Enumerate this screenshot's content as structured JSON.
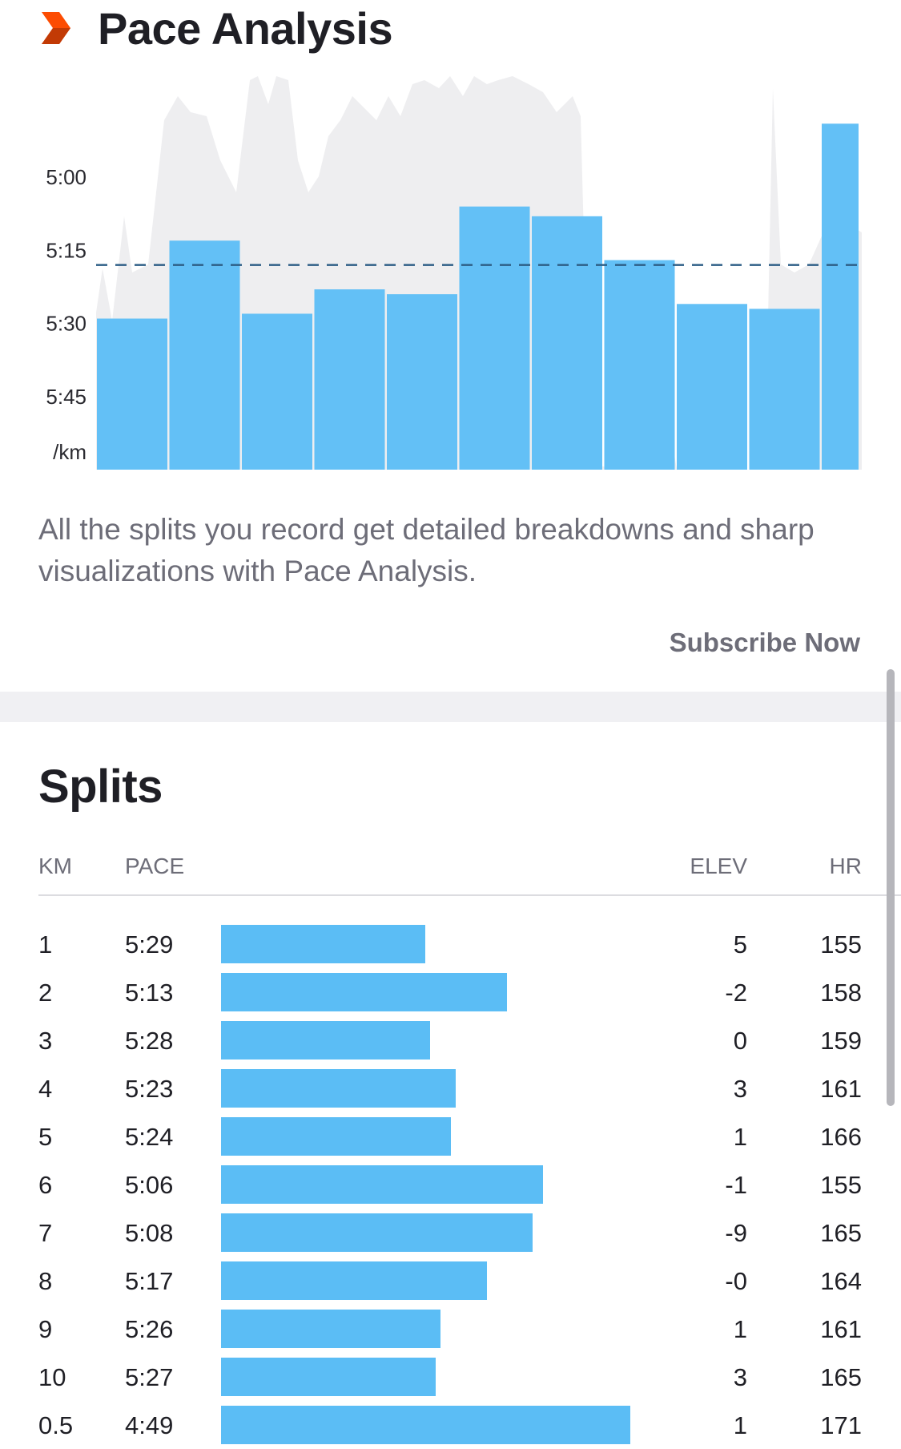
{
  "header": {
    "title": "Pace Analysis",
    "icon": "strava-chevron-icon",
    "icon_colors": [
      "#fc4c02",
      "#c23a05"
    ]
  },
  "chart_data": {
    "type": "bar",
    "title": "",
    "y_tick_labels": [
      "5:00",
      "5:15",
      "5:30",
      "5:45",
      "/km"
    ],
    "y_unit": "/km",
    "ylim_seconds_per_km": [
      285,
      360
    ],
    "categories": [
      "1",
      "2",
      "3",
      "4",
      "5",
      "6",
      "7",
      "8",
      "9",
      "10",
      "0.5"
    ],
    "series": [
      {
        "values": [
          329,
          313,
          328,
          323,
          324,
          306,
          308,
          317,
          326,
          327,
          289
        ]
      }
    ],
    "average_line_seconds_per_km": 318,
    "background_area": "pace trace (grey area)",
    "bar_color": "#5bbdf5",
    "area_color": "#eeeef0",
    "average_line_color": "#2e5f86",
    "grid": false
  },
  "description": "All the splits you record get detailed breakdowns and sharp visualizations with Pace Analysis.",
  "subscribe_label": "Subscribe Now",
  "splits": {
    "title": "Splits",
    "headers": {
      "km": "KM",
      "pace": "PACE",
      "elev": "ELEV",
      "hr": "HR"
    },
    "bar_color": "#5bbdf5",
    "rows": [
      {
        "km": "1",
        "pace": "5:29",
        "elev": "5",
        "hr": "155"
      },
      {
        "km": "2",
        "pace": "5:13",
        "elev": "-2",
        "hr": "158"
      },
      {
        "km": "3",
        "pace": "5:28",
        "elev": "0",
        "hr": "159"
      },
      {
        "km": "4",
        "pace": "5:23",
        "elev": "3",
        "hr": "161"
      },
      {
        "km": "5",
        "pace": "5:24",
        "elev": "1",
        "hr": "166"
      },
      {
        "km": "6",
        "pace": "5:06",
        "elev": "-1",
        "hr": "155"
      },
      {
        "km": "7",
        "pace": "5:08",
        "elev": "-9",
        "hr": "165"
      },
      {
        "km": "8",
        "pace": "5:17",
        "elev": "-0",
        "hr": "164"
      },
      {
        "km": "9",
        "pace": "5:26",
        "elev": "1",
        "hr": "161"
      },
      {
        "km": "10",
        "pace": "5:27",
        "elev": "3",
        "hr": "165"
      },
      {
        "km": "0.5",
        "pace": "4:49",
        "elev": "1",
        "hr": "171"
      }
    ]
  }
}
